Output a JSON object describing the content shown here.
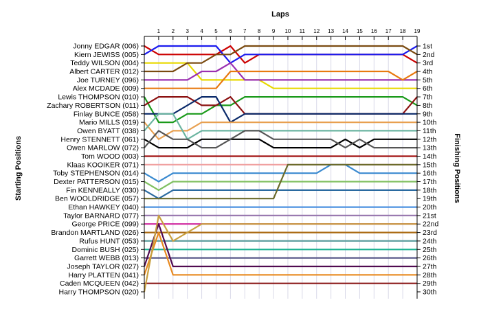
{
  "chart_data": {
    "type": "line",
    "title": "",
    "xlabel": "Laps",
    "ylabel_left": "Starting Positions",
    "ylabel_right": "Finishing Positions",
    "x": [
      0,
      1,
      2,
      3,
      4,
      5,
      6,
      7,
      8,
      9,
      10,
      11,
      12,
      13,
      14,
      15,
      16,
      17,
      18,
      19
    ],
    "x_tick_labels": [
      "1",
      "2",
      "3",
      "4",
      "5",
      "6",
      "7",
      "8",
      "9",
      "10",
      "11",
      "12",
      "13",
      "14",
      "15",
      "16",
      "17",
      "18",
      "19"
    ],
    "y_range": [
      1,
      30
    ],
    "y_reversed": true,
    "grid": true,
    "start_labels": [
      "Jonny EDGAR (006)",
      "Kiern JEWISS (005)",
      "Teddy WILSON (004)",
      "Albert CARTER (012)",
      "Joe TURNEY (096)",
      "Alex MCDADE (009)",
      "Lewis THOMPSON (010)",
      "Zachary ROBERTSON (011)",
      "Finlay BUNCE (058)",
      "Mario MILLS (019)",
      "Owen BYATT (038)",
      "Henry STENNETT (061)",
      "Owen MARLOW (072)",
      "Tom WOOD (003)",
      "Klaas KOOIKER (071)",
      "Toby STEPHENSON (014)",
      "Dexter PATTERSON (015)",
      "Fin KENNEALLY (030)",
      "Ben WOOLDRIDGE (057)",
      "Ethan HAWKEY (040)",
      "Taylor BARNARD (077)",
      "George PRICE (099)",
      "Brandon MARTLAND (026)",
      "Rufus HUNT (053)",
      "Dominic BUSH (025)",
      "Garrett WEBB (013)",
      "Joseph TAYLOR (027)",
      "Harry PLATTEN (041)",
      "Caden MCQUEEN (042)",
      "Harry THOMPSON (020)"
    ],
    "finish_labels": [
      "1st",
      "2nd",
      "3rd",
      "4th",
      "5th",
      "6th",
      "7th",
      "8th",
      "9th",
      "10th",
      "11th",
      "12th",
      "13th",
      "14th",
      "15th",
      "16th",
      "17th",
      "18th",
      "19th",
      "20th",
      "21st",
      "22nd",
      "23rd",
      "24th",
      "25th",
      "26th",
      "27th",
      "28th",
      "29th",
      "30th"
    ],
    "series": [
      {
        "color": "#cc0000",
        "values": [
          1,
          2,
          2,
          2,
          2,
          2,
          1,
          3,
          2,
          2,
          2,
          2,
          2,
          2,
          2,
          2,
          2,
          2,
          2,
          3
        ]
      },
      {
        "color": "#1a1aee",
        "values": [
          2,
          1,
          1,
          1,
          1,
          1,
          3,
          2,
          2,
          2,
          2,
          2,
          2,
          2,
          2,
          2,
          2,
          2,
          2,
          1
        ]
      },
      {
        "color": "#e8d800",
        "values": [
          3,
          3,
          3,
          3,
          5,
          5,
          5,
          5,
          5,
          6,
          6,
          6,
          6,
          6,
          6,
          6,
          6,
          6,
          6,
          6
        ]
      },
      {
        "color": "#7a4a10",
        "values": [
          4,
          4,
          4,
          3,
          3,
          2,
          2,
          1,
          1,
          1,
          1,
          1,
          1,
          1,
          1,
          1,
          1,
          1,
          1,
          2
        ]
      },
      {
        "color": "#9a2fb0",
        "values": [
          5,
          5,
          5,
          5,
          4,
          4,
          3,
          5,
          5,
          5,
          5,
          5,
          5,
          5,
          5,
          5,
          5,
          5,
          5,
          5
        ]
      },
      {
        "color": "#e87a10",
        "values": [
          6,
          6,
          6,
          6,
          6,
          6,
          4,
          4,
          4,
          4,
          4,
          4,
          4,
          4,
          4,
          4,
          4,
          4,
          5,
          4
        ]
      },
      {
        "color": "#1a9a1a",
        "values": [
          7,
          10,
          10,
          9,
          9,
          8,
          8,
          7,
          7,
          7,
          7,
          7,
          7,
          7,
          7,
          7,
          7,
          7,
          7,
          8
        ]
      },
      {
        "color": "#8b1010",
        "values": [
          8,
          7,
          7,
          7,
          8,
          8,
          7,
          9,
          9,
          9,
          9,
          9,
          9,
          9,
          9,
          9,
          9,
          9,
          9,
          7
        ]
      },
      {
        "color": "#0a2a6a",
        "values": [
          9,
          9,
          9,
          8,
          7,
          7,
          10,
          9,
          9,
          9,
          9,
          9,
          9,
          9,
          9,
          9,
          9,
          9,
          9,
          9
        ]
      },
      {
        "color": "#e8a050",
        "values": [
          10,
          12,
          11,
          11,
          10,
          10,
          10,
          10,
          10,
          10,
          10,
          10,
          10,
          10,
          10,
          10,
          10,
          10,
          10,
          10
        ]
      },
      {
        "color": "#6ab4a0",
        "values": [
          11,
          9,
          9,
          12,
          11,
          11,
          11,
          11,
          11,
          11,
          11,
          11,
          11,
          11,
          11,
          11,
          11,
          11,
          11,
          11
        ]
      },
      {
        "color": "#000000",
        "values": [
          12,
          13,
          13,
          13,
          12,
          12,
          12,
          12,
          12,
          13,
          13,
          13,
          13,
          13,
          12,
          13,
          12,
          12,
          12,
          12
        ]
      },
      {
        "color": "#555555",
        "values": [
          13,
          11,
          12,
          12,
          13,
          13,
          12,
          11,
          11,
          12,
          12,
          12,
          12,
          12,
          13,
          12,
          13,
          13,
          13,
          13
        ]
      },
      {
        "color": "#a01010",
        "values": [
          14,
          14,
          14,
          14,
          14,
          14,
          14,
          14,
          14,
          14,
          14,
          14,
          14,
          14,
          14,
          14,
          14,
          14,
          14,
          14
        ]
      },
      {
        "color": "#f0a0a0",
        "values": [
          15,
          15,
          15,
          15,
          15,
          15,
          15,
          15,
          15,
          15,
          15,
          15,
          15,
          15,
          15,
          15,
          15,
          15,
          15,
          15
        ]
      },
      {
        "color": "#3a8ad0",
        "values": [
          16,
          17,
          16,
          16,
          16,
          16,
          16,
          16,
          16,
          16,
          16,
          16,
          16,
          15,
          15,
          16,
          16,
          16,
          16,
          16
        ]
      },
      {
        "color": "#80c060",
        "values": [
          17,
          18,
          17,
          17,
          17,
          17,
          17,
          17,
          17,
          17,
          17,
          17,
          17,
          17,
          17,
          17,
          17,
          17,
          17,
          17
        ]
      },
      {
        "color": "#2a6aa0",
        "values": [
          18,
          19,
          18,
          18,
          18,
          18,
          18,
          18,
          18,
          18,
          18,
          18,
          18,
          18,
          18,
          18,
          18,
          18,
          18,
          18
        ]
      },
      {
        "color": "#6a6a2a",
        "values": [
          19,
          19,
          19,
          19,
          19,
          19,
          19,
          19,
          19,
          19,
          15,
          15,
          15,
          15,
          15,
          15,
          15,
          15,
          15,
          15
        ]
      },
      {
        "color": "#4a90e0",
        "values": [
          20,
          20,
          20,
          20,
          20,
          20,
          20,
          20,
          20,
          20,
          20,
          20,
          20,
          20,
          20,
          20,
          20,
          20,
          20,
          20
        ]
      },
      {
        "color": "#9a7ab0",
        "values": [
          21,
          21,
          21,
          21,
          21,
          21,
          21,
          21,
          21,
          21,
          21,
          21,
          21,
          21,
          21,
          21,
          21,
          21,
          21,
          21
        ]
      },
      {
        "color": "#d02aa0",
        "values": [
          22,
          22,
          22,
          22,
          22,
          22,
          22,
          22,
          22,
          22,
          22,
          22,
          22,
          22,
          22,
          22,
          22,
          22,
          22,
          22
        ]
      },
      {
        "color": "#aa6a10",
        "values": [
          23,
          23,
          23,
          23,
          23,
          23,
          23,
          23,
          23,
          23,
          23,
          23,
          23,
          23,
          23,
          23,
          23,
          23,
          23,
          23
        ]
      },
      {
        "color": "#60a0a0",
        "values": [
          24,
          24,
          24,
          24,
          24,
          24,
          24,
          24,
          24,
          24,
          24,
          24,
          24,
          24,
          24,
          24,
          24,
          24,
          24,
          24
        ]
      },
      {
        "color": "#1ab090",
        "values": [
          25,
          25,
          25,
          25,
          25,
          25,
          25,
          25,
          25,
          25,
          25,
          25,
          25,
          25,
          25,
          25,
          25,
          25,
          25,
          25
        ]
      },
      {
        "color": "#5a5a8a",
        "values": [
          26,
          26,
          26,
          26,
          26,
          26,
          26,
          26,
          26,
          26,
          26,
          26,
          26,
          26,
          26,
          26,
          26,
          26,
          26,
          26
        ]
      },
      {
        "color": "#500a50",
        "values": [
          27,
          22,
          27,
          27,
          27,
          27,
          27,
          27,
          27,
          27,
          27,
          27,
          27,
          27,
          27,
          27,
          27,
          27,
          27,
          27
        ]
      },
      {
        "color": "#e88a20",
        "values": [
          28,
          23,
          28,
          28,
          28,
          28,
          28,
          28,
          28,
          28,
          28,
          28,
          28,
          28,
          28,
          28,
          28,
          28,
          28,
          28
        ]
      },
      {
        "color": "#8b1a1a",
        "values": [
          29,
          29,
          29,
          29,
          29,
          29,
          29,
          29,
          29,
          29,
          29,
          29,
          29,
          29,
          29,
          29,
          29,
          29,
          29,
          29
        ]
      },
      {
        "color": "#c8a040",
        "values": [
          30,
          21,
          24,
          23,
          22,
          22,
          22,
          22,
          22,
          22,
          22,
          22,
          22,
          22,
          22,
          22,
          22,
          22,
          22,
          22
        ]
      }
    ]
  }
}
